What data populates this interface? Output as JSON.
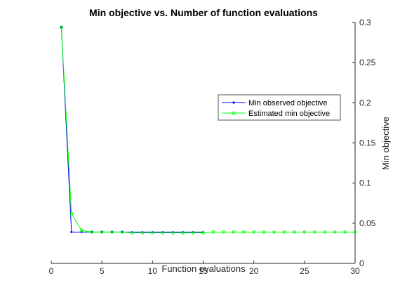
{
  "chart_data": {
    "type": "line",
    "title": "Min objective vs. Number of function evaluations",
    "xlabel": "Function evaluations",
    "ylabel": "Min objective",
    "xlim": [
      0,
      30
    ],
    "ylim": [
      0,
      0.3
    ],
    "xticks": [
      "0",
      "5",
      "10",
      "15",
      "20",
      "25",
      "30"
    ],
    "yticks": [
      "0",
      "0.05",
      "0.1",
      "0.15",
      "0.2",
      "0.25",
      "0.3"
    ],
    "y_axis_location": "right",
    "grid": false,
    "legend_position": "right",
    "series": [
      {
        "name": "Min observed objective",
        "color": "#0000ff",
        "marker": "point",
        "x": [
          1,
          2,
          3,
          4,
          5,
          6,
          7,
          8,
          9,
          10,
          11,
          12,
          13,
          14,
          15
        ],
        "values": [
          0.294,
          0.039,
          0.039,
          0.039,
          0.039,
          0.039,
          0.039,
          0.039,
          0.039,
          0.039,
          0.039,
          0.039,
          0.039,
          0.039,
          0.039
        ]
      },
      {
        "name": "Estimated min objective",
        "color": "#00ff00",
        "marker": "circle",
        "x": [
          1,
          2,
          3,
          4,
          5,
          6,
          7,
          8,
          9,
          10,
          11,
          12,
          13,
          14,
          15,
          16,
          17,
          18,
          19,
          20,
          21,
          22,
          23,
          24,
          25,
          26,
          27,
          28,
          29,
          30
        ],
        "values": [
          0.294,
          0.062,
          0.041,
          0.039,
          0.039,
          0.039,
          0.039,
          0.038,
          0.038,
          0.038,
          0.038,
          0.038,
          0.038,
          0.038,
          0.038,
          0.039,
          0.039,
          0.039,
          0.039,
          0.039,
          0.039,
          0.039,
          0.039,
          0.039,
          0.039,
          0.039,
          0.039,
          0.039,
          0.039,
          0.039
        ]
      }
    ]
  }
}
